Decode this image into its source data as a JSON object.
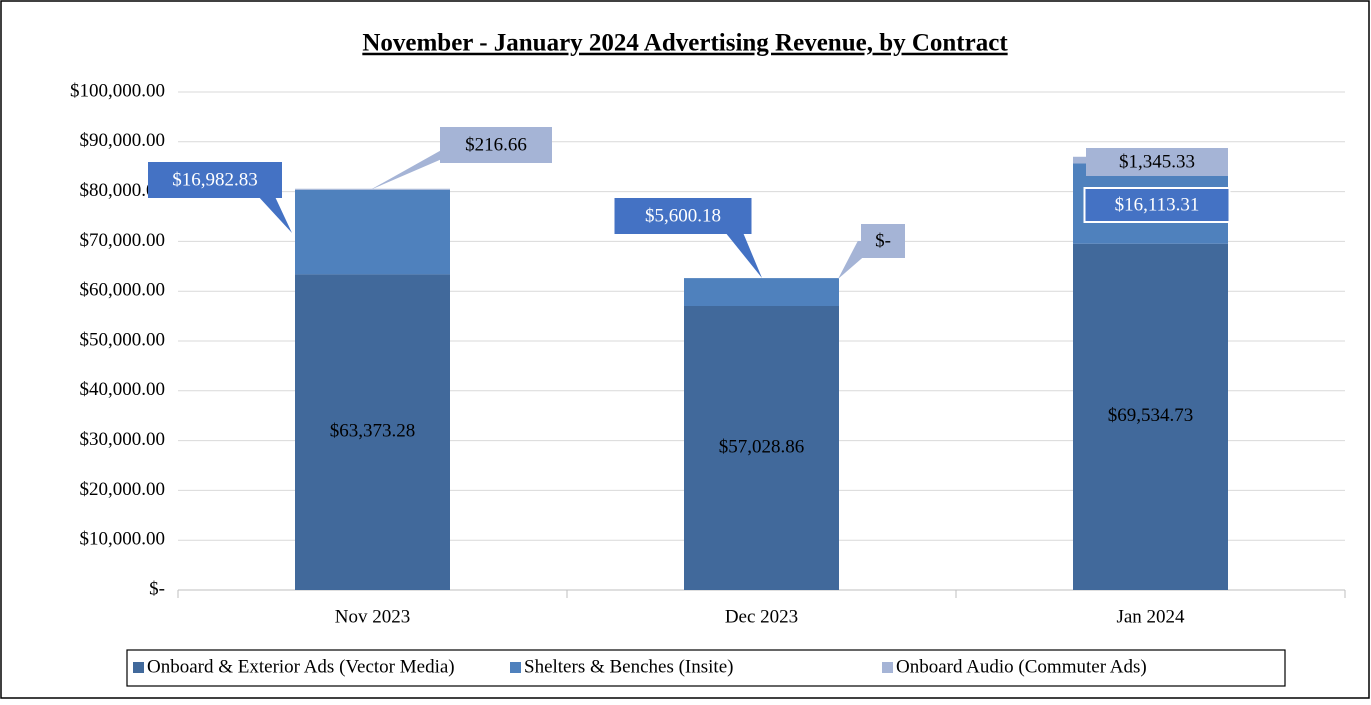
{
  "chart_data": {
    "type": "stacked_bar",
    "title": "November - January 2024 Advertising Revenue, by Contract",
    "categories": [
      "Nov 2023",
      "Dec 2023",
      "Jan 2024"
    ],
    "series": [
      {
        "name": "Onboard & Exterior Ads (Vector Media)",
        "color": "#41699b",
        "values": [
          63373.28,
          57028.86,
          69534.73
        ],
        "value_labels": [
          "$63,373.28",
          "$57,028.86",
          "$69,534.73"
        ]
      },
      {
        "name": "Shelters & Benches (Insite)",
        "color": "#4f81bd",
        "values": [
          16982.83,
          5600.18,
          16113.31
        ],
        "value_labels": [
          "$16,982.83",
          "$5,600.18",
          "$16,113.31"
        ]
      },
      {
        "name": "Onboard Audio (Commuter Ads)",
        "color": "#a5b4d6",
        "values": [
          216.66,
          0,
          1345.33
        ],
        "value_labels": [
          "$216.66",
          "$-",
          "$1,345.33"
        ]
      }
    ],
    "ylim": [
      0,
      100000
    ],
    "yticks": [
      {
        "value": 0,
        "label": "$-"
      },
      {
        "value": 10000,
        "label": "$10,000.00"
      },
      {
        "value": 20000,
        "label": "$20,000.00"
      },
      {
        "value": 30000,
        "label": "$30,000.00"
      },
      {
        "value": 40000,
        "label": "$40,000.00"
      },
      {
        "value": 50000,
        "label": "$50,000.00"
      },
      {
        "value": 60000,
        "label": "$60,000.00"
      },
      {
        "value": 70000,
        "label": "$70,000.00"
      },
      {
        "value": 80000,
        "label": "$80,000.00"
      },
      {
        "value": 90000,
        "label": "$90,000.00"
      },
      {
        "value": 100000,
        "label": "$100,000.00"
      }
    ],
    "grid": true,
    "legend": "bottom"
  }
}
